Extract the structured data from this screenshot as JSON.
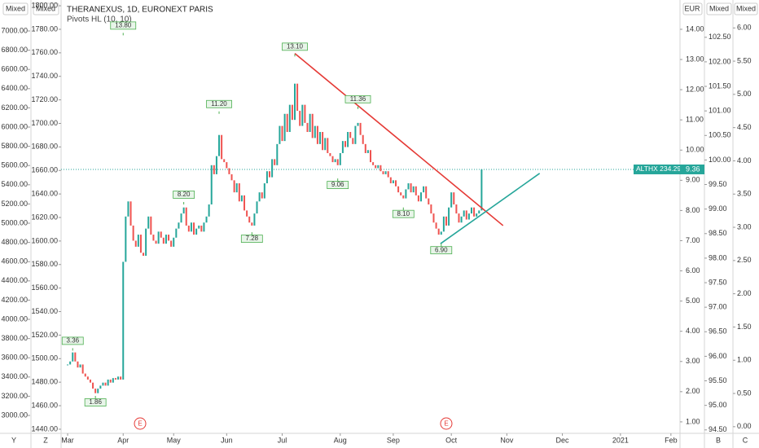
{
  "chart_data": {
    "type": "candlestick",
    "title": "THERANEXUS, 1D, EURONEXT PARIS",
    "indicator": "Pivots HL (10, 10)",
    "currency": "EUR",
    "axis_buttons": [
      "Mixed",
      "Mixed",
      "Mixed",
      "Mixed"
    ],
    "corner_buttons": [
      "Y",
      "Z",
      "B",
      "C"
    ],
    "up_color": "#26a69a",
    "down_color": "#ef5350",
    "xlim": [
      -2.6,
      242.6
    ],
    "xticks": [
      {
        "value": 0,
        "label": "Mar"
      },
      {
        "value": 22,
        "label": "Apr"
      },
      {
        "value": 42,
        "label": "May"
      },
      {
        "value": 63,
        "label": "Jun"
      },
      {
        "value": 85,
        "label": "Jul"
      },
      {
        "value": 108,
        "label": "Aug"
      },
      {
        "value": 129,
        "label": "Sep"
      },
      {
        "value": 152,
        "label": "Oct"
      },
      {
        "value": 174,
        "label": "Nov"
      },
      {
        "value": 196,
        "label": "Dec"
      },
      {
        "value": 219,
        "label": "2021"
      },
      {
        "value": 239,
        "label": "Feb"
      }
    ],
    "ylim": [
      0.62,
      14.97
    ],
    "yticks": [
      {
        "value": 1,
        "label": "1.00"
      },
      {
        "value": 2,
        "label": "2.00"
      },
      {
        "value": 3,
        "label": "3.00"
      },
      {
        "value": 4,
        "label": "4.00"
      },
      {
        "value": 5,
        "label": "5.00"
      },
      {
        "value": 6,
        "label": "6.00"
      },
      {
        "value": 7,
        "label": "7.00"
      },
      {
        "value": 8,
        "label": "8.00"
      },
      {
        "value": 9,
        "label": "9.00"
      },
      {
        "value": 10,
        "label": "10.00"
      },
      {
        "value": 11,
        "label": "11.00"
      },
      {
        "value": 12,
        "label": "12.00"
      },
      {
        "value": 13,
        "label": "13.00"
      },
      {
        "value": 14,
        "label": "14.00"
      }
    ],
    "closes": [
      2.9,
      3.0,
      3.3,
      3.0,
      2.8,
      2.9,
      2.6,
      2.5,
      2.4,
      2.3,
      2.1,
      1.95,
      2.1,
      2.2,
      2.3,
      2.2,
      2.4,
      2.3,
      2.45,
      2.4,
      2.5,
      2.4,
      6.3,
      7.8,
      8.3,
      7.5,
      7.0,
      6.8,
      7.2,
      6.6,
      6.5,
      7.4,
      7.8,
      7.2,
      7.0,
      6.9,
      7.3,
      7.1,
      6.9,
      7.2,
      7.0,
      6.8,
      7.1,
      7.4,
      7.6,
      7.9,
      8.1,
      7.5,
      7.3,
      7.6,
      7.2,
      7.4,
      7.5,
      7.3,
      7.6,
      7.8,
      8.2,
      9.5,
      9.2,
      9.8,
      10.5,
      9.7,
      9.6,
      9.4,
      9.2,
      9.0,
      8.6,
      8.9,
      8.3,
      8.5,
      8.0,
      7.8,
      7.6,
      7.5,
      7.9,
      8.3,
      8.6,
      8.4,
      8.9,
      9.3,
      9.1,
      9.7,
      9.5,
      10.2,
      10.8,
      10.3,
      11.2,
      10.6,
      11.5,
      11.0,
      12.2,
      11.3,
      10.8,
      11.5,
      10.9,
      10.6,
      11.2,
      10.4,
      10.8,
      10.2,
      10.6,
      10.0,
      10.4,
      9.9,
      9.8,
      9.6,
      9.7,
      9.5,
      9.9,
      10.3,
      10.1,
      10.6,
      10.4,
      10.2,
      10.8,
      10.9,
      10.5,
      10.2,
      9.9,
      10.0,
      9.6,
      9.5,
      9.4,
      9.5,
      9.3,
      9.2,
      9.3,
      9.1,
      8.9,
      9.0,
      8.8,
      8.6,
      8.5,
      8.4,
      8.7,
      8.9,
      8.6,
      8.8,
      8.5,
      8.3,
      8.6,
      8.8,
      8.4,
      8.2,
      7.9,
      7.6,
      7.4,
      7.2,
      7.3,
      7.8,
      7.5,
      8.1,
      8.6,
      8.2,
      7.9,
      7.6,
      7.8,
      8.0,
      7.7,
      7.9,
      8.1,
      7.8,
      7.9,
      8.0,
      9.36
    ],
    "pivots": [
      {
        "x": 2,
        "value": 3.36,
        "label": "3.36",
        "kind": "high"
      },
      {
        "x": 11,
        "value": 1.86,
        "label": "1.86",
        "kind": "low"
      },
      {
        "x": 22,
        "value": 13.8,
        "label": "13.80",
        "kind": "high"
      },
      {
        "x": 46,
        "value": 8.2,
        "label": "8.20",
        "kind": "high"
      },
      {
        "x": 60,
        "value": 11.2,
        "label": "11.20",
        "kind": "high"
      },
      {
        "x": 73,
        "value": 7.28,
        "label": "7.28",
        "kind": "low"
      },
      {
        "x": 90,
        "value": 13.1,
        "label": "13.10",
        "kind": "high"
      },
      {
        "x": 107,
        "value": 9.06,
        "label": "9.06",
        "kind": "low"
      },
      {
        "x": 115,
        "value": 11.36,
        "label": "11.36",
        "kind": "high"
      },
      {
        "x": 133,
        "value": 8.1,
        "label": "8.10",
        "kind": "low"
      },
      {
        "x": 148,
        "value": 6.9,
        "label": "6.90",
        "kind": "low"
      }
    ],
    "trend_lines": [
      {
        "color": "#e53935",
        "x": [
          90,
          172.5
        ],
        "y": [
          13.2,
          7.5
        ]
      },
      {
        "color": "#26a69a",
        "x": [
          147.7,
          187
        ],
        "y": [
          6.9,
          9.23
        ]
      }
    ],
    "events": [
      {
        "x": 28.7,
        "label": "E"
      },
      {
        "x": 150,
        "label": "E"
      }
    ],
    "last_price": {
      "name": "ALTHX 234.29%",
      "value": 9.36,
      "label": "9.36",
      "color": "#26a69a"
    },
    "other_axes": [
      {
        "side": "left",
        "ylim": [
          2814,
          7322
        ],
        "yticks": [
          {
            "value": 3000,
            "label": "3000.00"
          },
          {
            "value": 3200,
            "label": "3200.00"
          },
          {
            "value": 3400,
            "label": "3400.00"
          },
          {
            "value": 3600,
            "label": "3600.00"
          },
          {
            "value": 3800,
            "label": "3800.00"
          },
          {
            "value": 4000,
            "label": "4000.00"
          },
          {
            "value": 4200,
            "label": "4200.00"
          },
          {
            "value": 4400,
            "label": "4400.00"
          },
          {
            "value": 4600,
            "label": "4600.00"
          },
          {
            "value": 4800,
            "label": "4800.00"
          },
          {
            "value": 5000,
            "label": "5000.00"
          },
          {
            "value": 5200,
            "label": "5200.00"
          },
          {
            "value": 5400,
            "label": "5400.00"
          },
          {
            "value": 5600,
            "label": "5600.00"
          },
          {
            "value": 5800,
            "label": "5800.00"
          },
          {
            "value": 6000,
            "label": "6000.00"
          },
          {
            "value": 6200,
            "label": "6200.00"
          },
          {
            "value": 6400,
            "label": "6400.00"
          },
          {
            "value": 6600,
            "label": "6600.00"
          },
          {
            "value": 6800,
            "label": "6800.00"
          },
          {
            "value": 7000,
            "label": "7000.00"
          }
        ]
      },
      {
        "side": "left",
        "ylim": [
          1436.5,
          1804.9
        ],
        "yticks": [
          {
            "value": 1440,
            "label": "1440.00"
          },
          {
            "value": 1460,
            "label": "1460.00"
          },
          {
            "value": 1480,
            "label": "1480.00"
          },
          {
            "value": 1500,
            "label": "1500.00"
          },
          {
            "value": 1520,
            "label": "1520.00"
          },
          {
            "value": 1540,
            "label": "1540.00"
          },
          {
            "value": 1560,
            "label": "1560.00"
          },
          {
            "value": 1580,
            "label": "1580.00"
          },
          {
            "value": 1600,
            "label": "1600.00"
          },
          {
            "value": 1620,
            "label": "1620.00"
          },
          {
            "value": 1640,
            "label": "1640.00"
          },
          {
            "value": 1660,
            "label": "1660.00"
          },
          {
            "value": 1680,
            "label": "1680.00"
          },
          {
            "value": 1700,
            "label": "1700.00"
          },
          {
            "value": 1720,
            "label": "1720.00"
          },
          {
            "value": 1740,
            "label": "1740.00"
          },
          {
            "value": 1760,
            "label": "1760.00"
          },
          {
            "value": 1780,
            "label": "1780.00"
          },
          {
            "value": 1800,
            "label": "1800.00"
          }
        ]
      },
      {
        "side": "right",
        "ylim": [
          94.43,
          103.26
        ],
        "yticks": [
          {
            "value": 94.5,
            "label": "94.50"
          },
          {
            "value": 95,
            "label": "95.00"
          },
          {
            "value": 95.5,
            "label": "95.50"
          },
          {
            "value": 96,
            "label": "96.00"
          },
          {
            "value": 96.5,
            "label": "96.50"
          },
          {
            "value": 97,
            "label": "97.00"
          },
          {
            "value": 97.5,
            "label": "97.50"
          },
          {
            "value": 98,
            "label": "98.00"
          },
          {
            "value": 98.5,
            "label": "98.50"
          },
          {
            "value": 99,
            "label": "99.00"
          },
          {
            "value": 99.5,
            "label": "99.50"
          },
          {
            "value": 100,
            "label": "100.00"
          },
          {
            "value": 100.5,
            "label": "100.50"
          },
          {
            "value": 101,
            "label": "101.00"
          },
          {
            "value": 101.5,
            "label": "101.50"
          },
          {
            "value": 102,
            "label": "102.00"
          },
          {
            "value": 102.5,
            "label": "102.50"
          }
        ]
      },
      {
        "side": "right",
        "ylim": [
          -0.1,
          6.42
        ],
        "yticks": [
          {
            "value": 0,
            "label": "0.00"
          },
          {
            "value": 0.5,
            "label": "0.50"
          },
          {
            "value": 1,
            "label": "1.00"
          },
          {
            "value": 1.5,
            "label": "1.50"
          },
          {
            "value": 2,
            "label": "2.00"
          },
          {
            "value": 2.5,
            "label": "2.50"
          },
          {
            "value": 3,
            "label": "3.00"
          },
          {
            "value": 3.5,
            "label": "3.50"
          },
          {
            "value": 4,
            "label": "4.00"
          },
          {
            "value": 4.5,
            "label": "4.50"
          },
          {
            "value": 5,
            "label": "5.00"
          },
          {
            "value": 5.5,
            "label": "5.50"
          },
          {
            "value": 6,
            "label": "6.00"
          }
        ]
      }
    ]
  }
}
